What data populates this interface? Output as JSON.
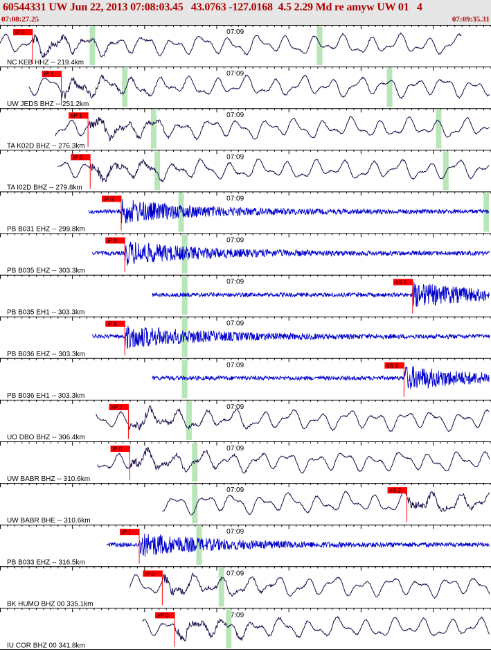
{
  "header": {
    "title": "60544331 UW Jun 22, 2013 07:08:03.45   43.0763 -127.0168  4.5 2.29 Md re amyw UW 01   4",
    "start_time": "07:08:27.25",
    "end_time": "07:09:35.31"
  },
  "colors": {
    "header_bg": "#e6e6e6",
    "header_text": "#b00000",
    "short_period_trace": "#0000cc",
    "broadband_trace": "#1a0a4a",
    "pick_flag": "#ff0000",
    "coda_marker": "#b8e6b8"
  },
  "chart_data": {
    "type": "seismogram",
    "title": "60544331 UW Jun 22, 2013 07:08:03.45   43.0763 -127.0168  4.5 2.29 Md re amyw UW 01   4",
    "time_window": [
      "07:08:27.25",
      "07:09:35.31"
    ],
    "minute_tick_label": "07:09",
    "minute_tick_time": "07:09:00",
    "grid": false,
    "traces": [
      {
        "label": "NC KEB HHZ -- 219.4km",
        "pick": "iP 0",
        "pick_time": 4.5,
        "end_time": 64.0,
        "coda_times": [
          12.8,
          44.3
        ],
        "kind": "broadband"
      },
      {
        "label": "UW JEDS BHZ -- 251.2km",
        "pick": "iP 1",
        "pick_time": 8.5,
        "end_time": 69.0,
        "coda_times": [
          17.3,
          54.0
        ],
        "kind": "broadband"
      },
      {
        "label": "TA K02D BHZ -- 276.3km",
        "pick": "eP 1",
        "pick_time": 12.2,
        "end_time": 73.0,
        "coda_times": [
          21.3,
          60.8
        ],
        "kind": "broadband"
      },
      {
        "label": "TA I02D BHZ -- 279.8km",
        "pick": "iP 0",
        "pick_time": 12.5,
        "end_time": 73.5,
        "coda_times": [
          21.8,
          61.8
        ],
        "kind": "broadband"
      },
      {
        "label": "PB B031 EHZ -- 299.8km",
        "pick": "iP 0",
        "pick_time": 16.8,
        "end_time": 77.0,
        "coda_times": [
          25.1,
          67.4
        ],
        "kind": "short-period"
      },
      {
        "label": "PB B035 EHZ -- 303.3km",
        "pick": "iP 0",
        "pick_time": 17.3,
        "end_time": 77.3,
        "coda_times": [
          25.6,
          68.5
        ],
        "kind": "short-period"
      },
      {
        "label": "PB B035 EH1 -- 303.3km",
        "pick": "eS 1",
        "pick_time": 57.2,
        "end_time": 77.3,
        "coda_times": [
          25.6,
          68.5
        ],
        "kind": "short-period"
      },
      {
        "label": "PB B036 EHZ -- 303.3km",
        "pick": "iP 0",
        "pick_time": 17.3,
        "end_time": 77.3,
        "coda_times": [
          25.6,
          68.5
        ],
        "kind": "short-period"
      },
      {
        "label": "PB B036 EH1 -- 303.3km",
        "pick": "eS 2",
        "pick_time": 56.0,
        "end_time": 77.3,
        "coda_times": [
          25.6,
          68.5
        ],
        "kind": "short-period"
      },
      {
        "label": "UO DBO BHZ -- 306.4km",
        "pick": "eP 2",
        "pick_time": 17.8,
        "end_time": 77.8,
        "coda_times": [
          26.2,
          69.9
        ],
        "kind": "broadband"
      },
      {
        "label": "UW BABR BHZ -- 310.6km",
        "pick": "iP 0",
        "pick_time": 18.0,
        "end_time": 78.3,
        "coda_times": [
          27.0,
          70.6
        ],
        "kind": "broadband"
      },
      {
        "label": "UW BABR BHE -- 310.6km",
        "pick": "eS 2",
        "pick_time": 56.4,
        "end_time": 78.3,
        "coda_times": [
          27.0,
          70.6
        ],
        "kind": "broadband"
      },
      {
        "label": "PB B033 EHZ -- 316.5km",
        "pick": "iP 1",
        "pick_time": 19.3,
        "end_time": 79.5,
        "coda_times": [
          27.6,
          72.0
        ],
        "kind": "short-period"
      },
      {
        "label": "BK HUMO BHZ 00 335.1km",
        "pick": "iP 0",
        "pick_time": 22.5,
        "end_time": 81.8,
        "coda_times": [
          30.7,
          77.5
        ],
        "kind": "broadband"
      },
      {
        "label": "IU COR BHZ 00 341.8km",
        "pick": "eP 0",
        "pick_time": 24.2,
        "end_time": 83.0,
        "coda_times": [
          31.7,
          79.3
        ],
        "kind": "broadband"
      }
    ]
  }
}
